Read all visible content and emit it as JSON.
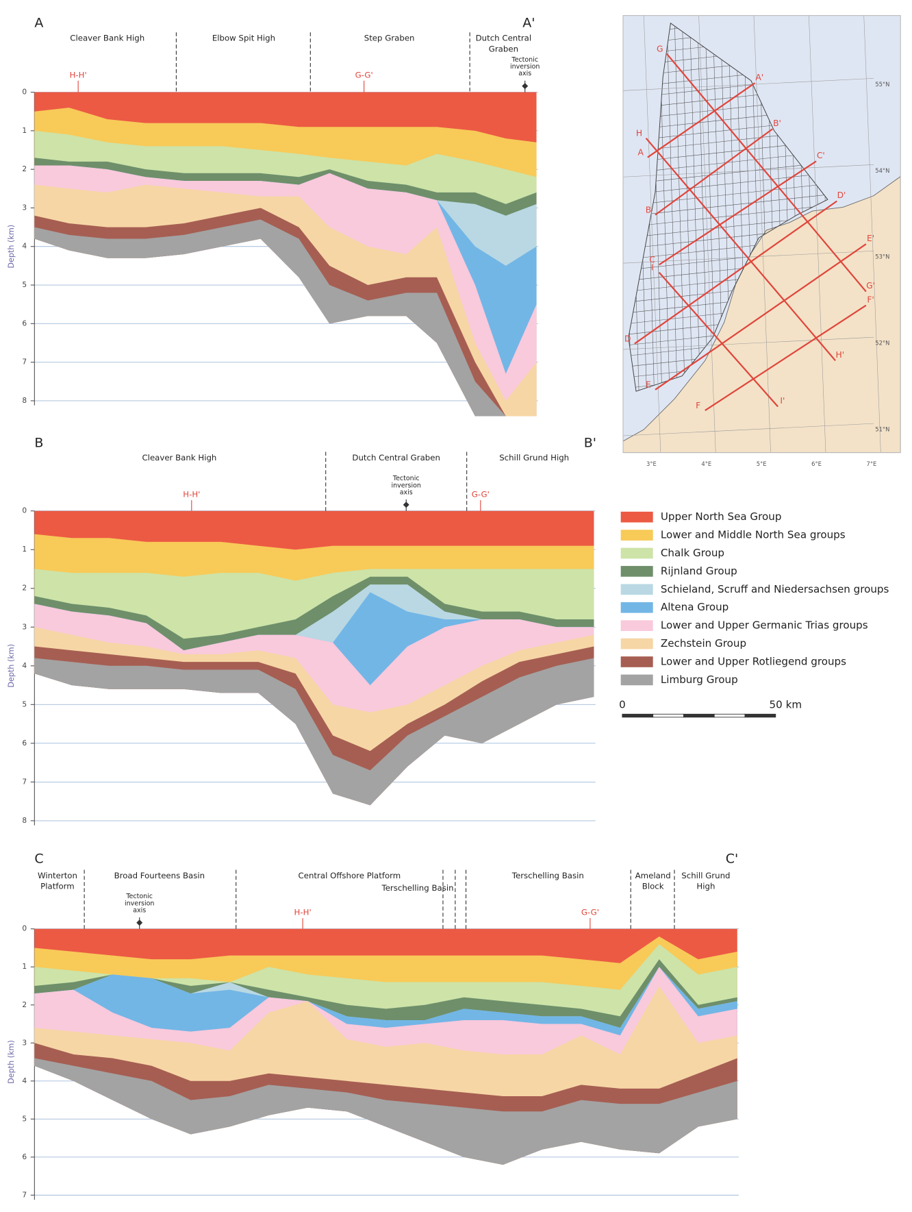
{
  "panels": [
    {
      "start": "A",
      "end": "A'",
      "regions": [
        [
          "Cleaver Bank High"
        ],
        [
          "Elbow Spit High"
        ],
        [
          "Step Graben"
        ],
        [
          "Dutch Central",
          "Graben"
        ]
      ],
      "markers": [
        "H-H'",
        "G-G'"
      ],
      "inversion": [
        "Tectonic",
        "inversion",
        "axis"
      ],
      "y_label": "Depth (km)",
      "yticks": [
        0,
        1,
        2,
        3,
        4,
        5,
        6,
        7,
        8
      ]
    },
    {
      "start": "B",
      "end": "B'",
      "regions": [
        [
          "Cleaver Bank High"
        ],
        [
          "Dutch Central Graben"
        ],
        [
          "Schill Grund High"
        ]
      ],
      "markers": [
        "H-H'",
        "G-G'"
      ],
      "inversion": [
        "Tectonic",
        "inversion",
        "axis"
      ],
      "y_label": "Depth (km)",
      "yticks": [
        0,
        1,
        2,
        3,
        4,
        5,
        6,
        7,
        8
      ]
    },
    {
      "start": "C",
      "end": "C'",
      "regions": [
        [
          "Winterton",
          "Platform"
        ],
        [
          "Broad Fourteens Basin"
        ],
        [
          "Central Offshore Platform"
        ],
        [
          "Terschelling Basin"
        ],
        [
          "Terschelling Basin"
        ],
        [
          "Ameland",
          "Block"
        ],
        [
          "Schill Grund",
          "High"
        ]
      ],
      "markers": [
        "H-H'",
        "G-G'"
      ],
      "inversion": [
        "Tectonic",
        "inversion",
        "axis"
      ],
      "y_label": "Depth (km)",
      "yticks": [
        0,
        1,
        2,
        3,
        4,
        5,
        6,
        7
      ]
    }
  ],
  "legend": [
    {
      "label": "Upper North Sea Group",
      "color": "#ec5a44"
    },
    {
      "label": "Lower and Middle North Sea groups",
      "color": "#f8ca58"
    },
    {
      "label": "Chalk Group",
      "color": "#cde3a8"
    },
    {
      "label": "Rijnland Group",
      "color": "#6e8f6a"
    },
    {
      "label": "Schieland, Scruff and Niedersachsen groups",
      "color": "#b9d8e3"
    },
    {
      "label": "Altena Group",
      "color": "#72b6e6"
    },
    {
      "label": "Lower and Upper Germanic Trias groups",
      "color": "#f9c9dc"
    },
    {
      "label": "Zechstein Group",
      "color": "#f6d6a5"
    },
    {
      "label": "Lower and Upper Rotliegend groups",
      "color": "#a65e52"
    },
    {
      "label": "Limburg Group",
      "color": "#a3a3a3"
    }
  ],
  "scale": {
    "start": "0",
    "end": "50 km"
  },
  "map": {
    "lat": [
      "55°N",
      "54°N",
      "53°N",
      "52°N",
      "51°N"
    ],
    "lon": [
      "3°E",
      "4°E",
      "5°E",
      "6°E",
      "7°E"
    ],
    "lines": [
      [
        "G",
        "G'"
      ],
      [
        "A",
        "A'"
      ],
      [
        "H",
        "H'"
      ],
      [
        "B",
        "B'"
      ],
      [
        "C",
        "C'"
      ],
      [
        "I",
        "I'"
      ],
      [
        "D",
        "D'"
      ],
      [
        "E",
        "E'"
      ],
      [
        "F",
        "F'"
      ]
    ]
  }
}
